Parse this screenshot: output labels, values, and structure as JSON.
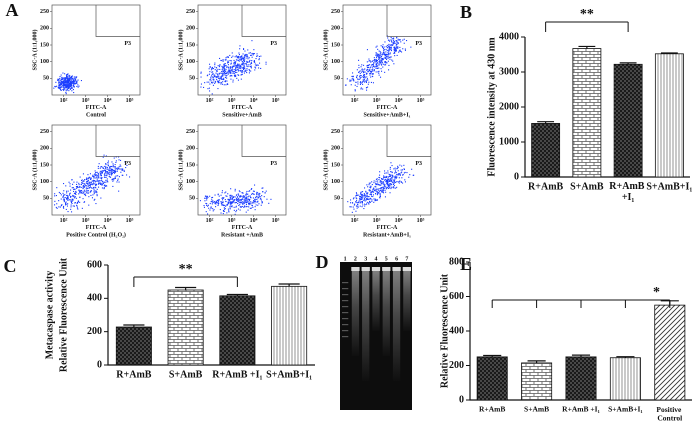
{
  "chart_data": [
    {
      "type": "flow",
      "panel": "A",
      "xlabel": "FITC-A",
      "ylabel": "SSC-A (1:1,000)",
      "subtitle": "Control",
      "gate_label": "P3",
      "xscale": "log",
      "xlim": [
        30,
        300000
      ],
      "xticks": [
        {
          "value": 100,
          "label": "10²"
        },
        {
          "value": 1000,
          "label": "10³"
        },
        {
          "value": 10000,
          "label": "10⁴"
        },
        {
          "value": 100000,
          "label": "10⁵"
        }
      ],
      "ylim": [
        0,
        270
      ],
      "yticks": [
        50,
        100,
        150,
        200,
        250
      ],
      "color": "#1a3cff"
    },
    {
      "type": "flow",
      "xlabel": "FITC-A",
      "ylabel": "SSC-A (1:1,000)",
      "subtitle": "Sensitive+AmB",
      "gate_label": "P3",
      "xscale": "log",
      "xlim": [
        30,
        300000
      ],
      "xticks": [
        {
          "value": 100,
          "label": "10²"
        },
        {
          "value": 1000,
          "label": "10³"
        },
        {
          "value": 10000,
          "label": "10⁴"
        },
        {
          "value": 100000,
          "label": "10⁵"
        }
      ],
      "ylim": [
        0,
        270
      ],
      "yticks": [
        50,
        100,
        150,
        200,
        250
      ],
      "color": "#1a3cff"
    },
    {
      "type": "flow",
      "xlabel": "FITC-A",
      "ylabel": "SSC-A (1:1,000)",
      "subtitle": "Sensitive+AmB+I₁",
      "gate_label": "P3",
      "xscale": "log",
      "xlim": [
        30,
        300000
      ],
      "xticks": [
        {
          "value": 100,
          "label": "10²"
        },
        {
          "value": 1000,
          "label": "10³"
        },
        {
          "value": 10000,
          "label": "10⁴"
        },
        {
          "value": 100000,
          "label": "10⁵"
        }
      ],
      "ylim": [
        0,
        270
      ],
      "yticks": [
        50,
        100,
        150,
        200,
        250
      ],
      "color": "#1a3cff"
    },
    {
      "type": "flow",
      "xlabel": "FITC-A",
      "ylabel": "SSC-A (1:1,000)",
      "subtitle": "Positive Control (H₂O₂)",
      "gate_label": "P3",
      "xscale": "log",
      "xlim": [
        30,
        300000
      ],
      "xticks": [
        {
          "value": 100,
          "label": "10²"
        },
        {
          "value": 1000,
          "label": "10³"
        },
        {
          "value": 10000,
          "label": "10⁴"
        },
        {
          "value": 100000,
          "label": "10⁵"
        }
      ],
      "ylim": [
        0,
        270
      ],
      "yticks": [
        50,
        100,
        150,
        200,
        250
      ],
      "color": "#1a3cff"
    },
    {
      "type": "flow",
      "xlabel": "FITC-A",
      "ylabel": "SSC-A (1:1,000)",
      "subtitle": "Resistant +AmB",
      "gate_label": "P3",
      "xscale": "log",
      "xlim": [
        30,
        300000
      ],
      "xticks": [
        {
          "value": 100,
          "label": "10²"
        },
        {
          "value": 1000,
          "label": "10³"
        },
        {
          "value": 10000,
          "label": "10⁴"
        },
        {
          "value": 100000,
          "label": "10⁵"
        }
      ],
      "ylim": [
        0,
        270
      ],
      "yticks": [
        50,
        100,
        150,
        200,
        250
      ],
      "color": "#1a3cff"
    },
    {
      "type": "flow",
      "xlabel": "FITC-A",
      "ylabel": "SSC-A (1:1,000)",
      "subtitle": "Resistant+AmB+I₁",
      "gate_label": "P3",
      "xscale": "log",
      "xlim": [
        30,
        300000
      ],
      "xticks": [
        {
          "value": 100,
          "label": "10²"
        },
        {
          "value": 1000,
          "label": "10³"
        },
        {
          "value": 10000,
          "label": "10⁴"
        },
        {
          "value": 100000,
          "label": "10⁵"
        }
      ],
      "ylim": [
        0,
        270
      ],
      "yticks": [
        50,
        100,
        150,
        200,
        250
      ],
      "color": "#1a3cff"
    },
    {
      "type": "bar",
      "panel": "B",
      "ylabel": [
        "Fluorescence intensity at 430 nm"
      ],
      "categories": [
        "R+AmB",
        "S+AmB",
        "R+AmB +I₁",
        "S+AmB+I₁"
      ],
      "values": [
        1530,
        3670,
        3220,
        3520
      ],
      "errors": [
        50,
        60,
        40,
        25
      ],
      "patterns": [
        "dots-dark",
        "brick",
        "dots-dark",
        "lines-vertical"
      ],
      "ylim": [
        0,
        4000
      ],
      "yticks": [
        0,
        1000,
        2000,
        3000,
        4000
      ],
      "annotation": "**"
    },
    {
      "type": "bar",
      "panel": "C",
      "ylabel": [
        "Metacaspase activity",
        "Relative Fluorescence Unit"
      ],
      "categories": [
        "R+AmB",
        "S+AmB",
        "R+AmB +I₁",
        "S+AmB+I₁"
      ],
      "values": [
        228,
        450,
        415,
        472
      ],
      "errors": [
        12,
        15,
        8,
        14
      ],
      "patterns": [
        "dots-dark",
        "brick",
        "dots-dark",
        "lines-vertical"
      ],
      "ylim": [
        0,
        600
      ],
      "yticks": [
        0,
        200,
        400,
        600
      ],
      "annotation": "**"
    },
    {
      "type": "bar",
      "panel": "E",
      "ylabel": [
        "Relative Fluorescence Unit"
      ],
      "categories": [
        "R+AmB",
        "S+AmB",
        "R+AmB +I₁",
        "S+AmB+I₁",
        "Positive Control"
      ],
      "values": [
        250,
        215,
        250,
        245,
        550
      ],
      "errors": [
        8,
        12,
        10,
        6,
        25
      ],
      "patterns": [
        "dots-dark",
        "brick",
        "dots-dark",
        "lines-vertical",
        "diagonal"
      ],
      "ylim": [
        0,
        800
      ],
      "yticks": [
        0,
        200,
        400,
        600,
        800
      ],
      "annotation": "*"
    }
  ],
  "gel": {
    "panel": "D",
    "lanes": [
      "1",
      "2",
      "3",
      "4",
      "5",
      "6",
      "7"
    ]
  }
}
